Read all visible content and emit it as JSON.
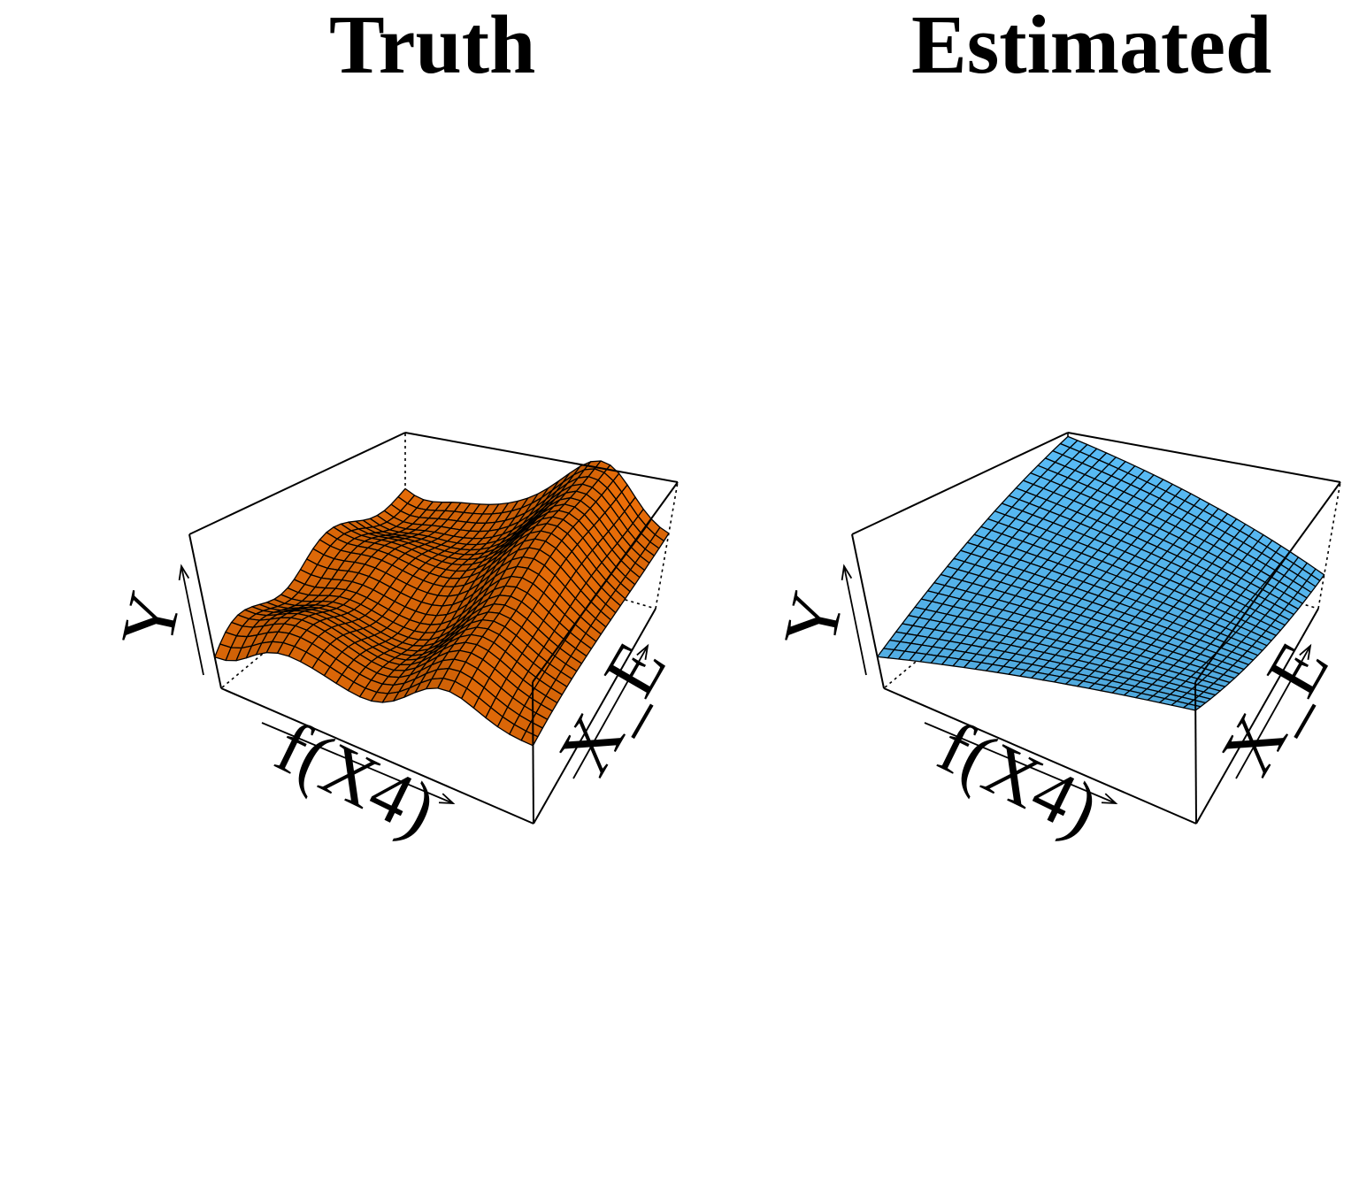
{
  "chart_data": [
    {
      "type": "surface",
      "title": "Truth",
      "xlabel": "f(X4)",
      "ylabel": "X_E",
      "zlabel": "Y",
      "surface_color": "#c65d07",
      "mesh_color": "#000000",
      "grid": [
        28,
        28
      ],
      "x_range": [
        0,
        1
      ],
      "y_range": [
        0,
        1
      ],
      "surface_description": "wavy ridge: high along f(X4) near 0.7 across X_E, with secondary waves and a low trough near f(X4)=0"
    },
    {
      "type": "surface",
      "title": "Estimated",
      "xlabel": "f(X4)",
      "ylabel": "X_E",
      "zlabel": "Y",
      "surface_color": "#4fa8dc",
      "mesh_color": "#000000",
      "grid": [
        28,
        28
      ],
      "x_range": [
        0,
        1
      ],
      "y_range": [
        0,
        1
      ],
      "surface_description": "smooth saddle: high at back corner and right edge, low at front-left and front-right corners"
    }
  ]
}
